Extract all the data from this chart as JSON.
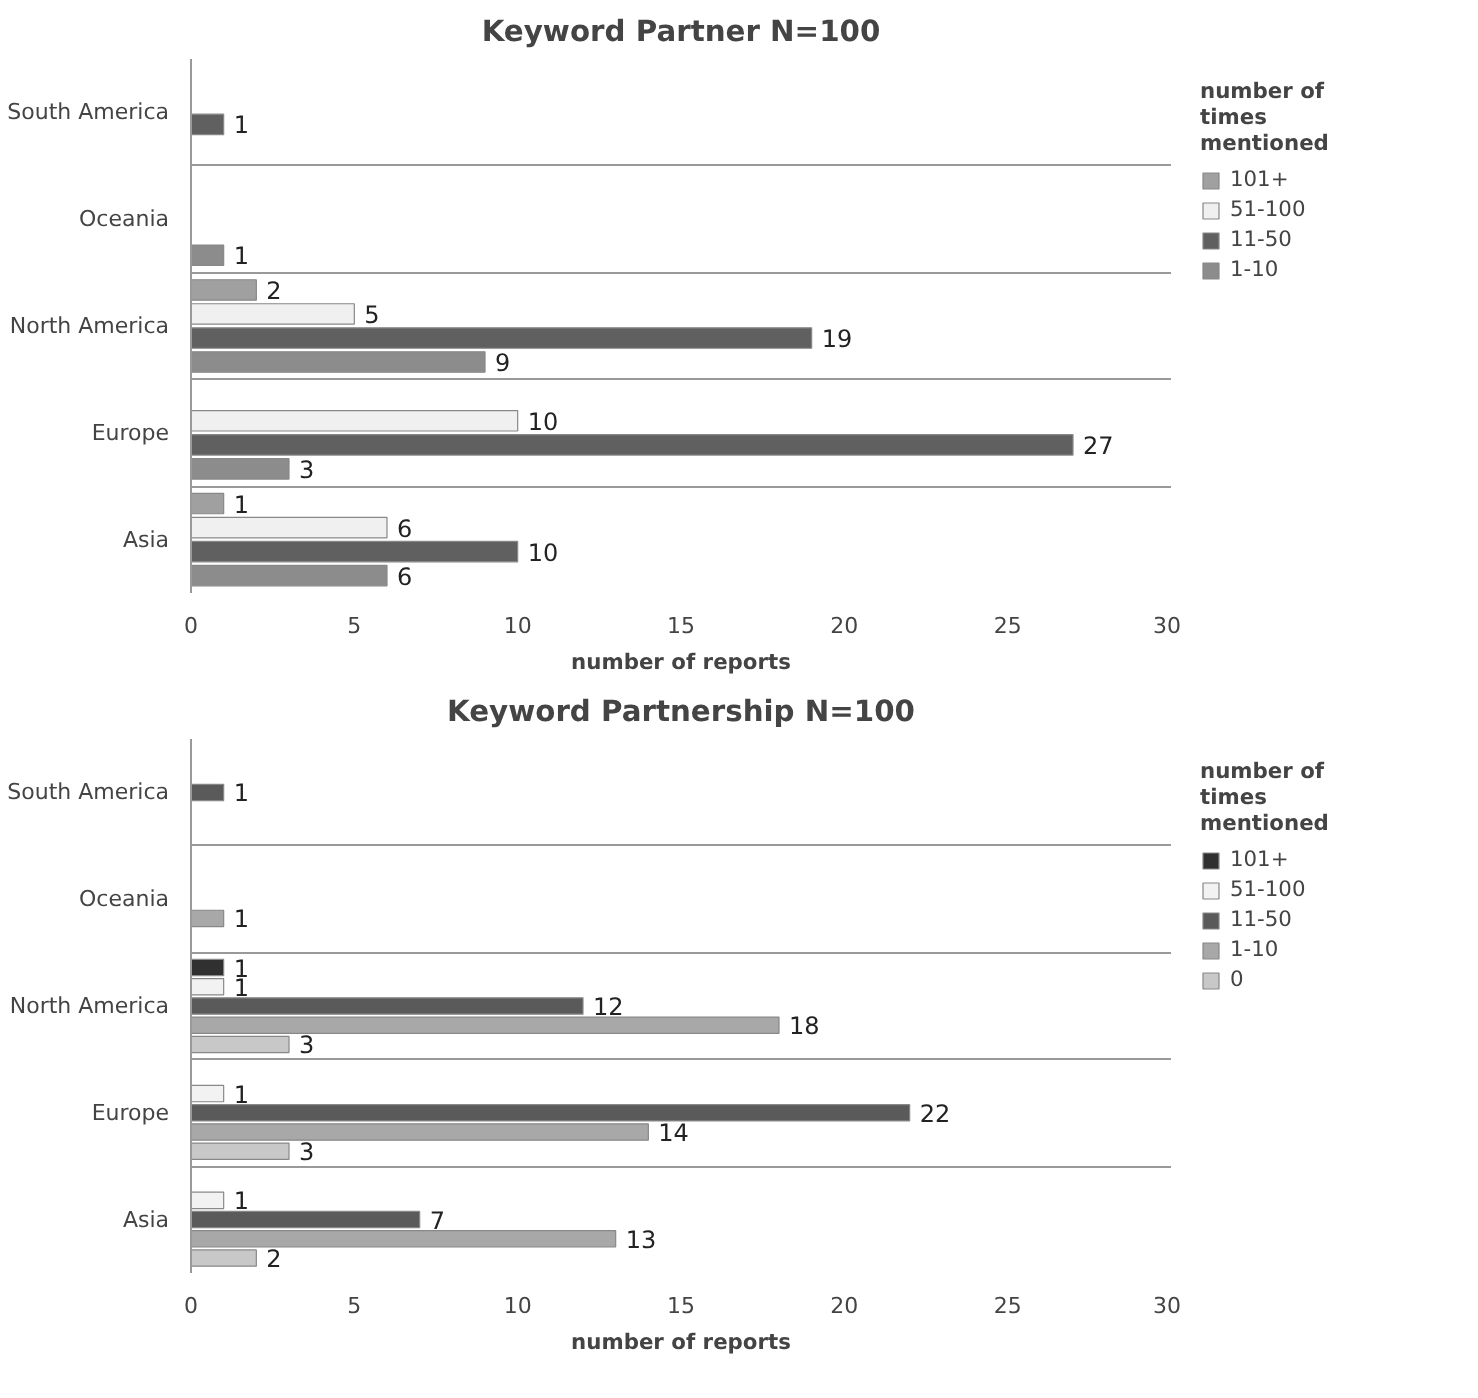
{
  "chart_data": [
    {
      "type": "bar",
      "orientation": "horizontal",
      "title": "Keyword Partner N=100",
      "xlabel": "number of reports",
      "legend_title": "number of times mentioned",
      "categories": [
        "South America",
        "Oceania",
        "North America",
        "Europe",
        "Asia"
      ],
      "series": [
        {
          "name": "101+",
          "color": "#a0a0a0",
          "values": [
            null,
            null,
            2,
            null,
            1
          ]
        },
        {
          "name": "51-100",
          "color": "#f0f0f0",
          "values": [
            null,
            null,
            5,
            10,
            6
          ]
        },
        {
          "name": "11-50",
          "color": "#606060",
          "values": [
            1,
            null,
            19,
            27,
            10
          ]
        },
        {
          "name": "1-10",
          "color": "#8c8c8c",
          "values": [
            null,
            1,
            9,
            3,
            6
          ]
        }
      ],
      "xlim": [
        0,
        30
      ],
      "xticks": [
        0,
        5,
        10,
        15,
        20,
        25,
        30
      ],
      "grid": "y",
      "legend": "right",
      "data_labels": true
    },
    {
      "type": "bar",
      "orientation": "horizontal",
      "title": "Keyword Partnership N=100",
      "xlabel": "number of reports",
      "legend_title": "number of times mentioned",
      "categories": [
        "South America",
        "Oceania",
        "North America",
        "Europe",
        "Asia"
      ],
      "series": [
        {
          "name": "101+",
          "color": "#303030",
          "values": [
            null,
            null,
            1,
            null,
            null
          ]
        },
        {
          "name": "51-100",
          "color": "#f2f2f2",
          "values": [
            null,
            null,
            1,
            1,
            1
          ]
        },
        {
          "name": "11-50",
          "color": "#5a5a5a",
          "values": [
            1,
            null,
            12,
            22,
            7
          ]
        },
        {
          "name": "1-10",
          "color": "#a8a8a8",
          "values": [
            null,
            1,
            18,
            14,
            13
          ]
        },
        {
          "name": "0",
          "color": "#c8c8c8",
          "values": [
            null,
            null,
            3,
            3,
            2
          ]
        }
      ],
      "xlim": [
        0,
        30
      ],
      "xticks": [
        0,
        5,
        10,
        15,
        20,
        25,
        30
      ],
      "grid": "y",
      "legend": "right",
      "data_labels": true
    }
  ]
}
